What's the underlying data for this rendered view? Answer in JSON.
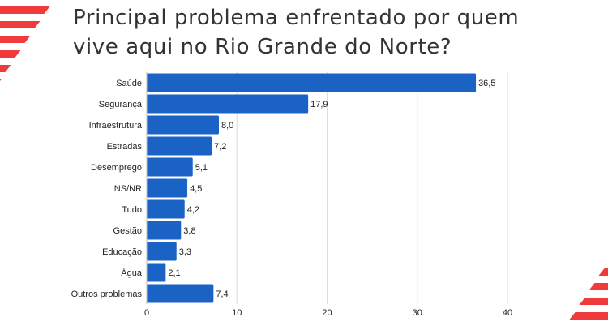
{
  "title_lines": [
    "Principal problema enfrentado por quem",
    "vive aqui no Rio Grande do Norte?"
  ],
  "colors": {
    "bar": "#1a63c4",
    "grid": "#dddddd",
    "accent": "#ef3b3b"
  },
  "chart_data": {
    "type": "bar",
    "orientation": "horizontal",
    "title": "Principal problema enfrentado por quem vive aqui no Rio Grande do Norte?",
    "categories": [
      "Saúde",
      "Segurança",
      "Infraestrutura",
      "Estradas",
      "Desemprego",
      "NS/NR",
      "Tudo",
      "Gestão",
      "Educação",
      "Água",
      "Outros problemas"
    ],
    "values": [
      36.5,
      17.9,
      8.0,
      7.2,
      5.1,
      4.5,
      4.2,
      3.8,
      3.3,
      2.1,
      7.4
    ],
    "value_labels": [
      "36,5",
      "17,9",
      "8,0",
      "7,2",
      "5,1",
      "4,5",
      "4,2",
      "3,8",
      "3,3",
      "2,1",
      "7,4"
    ],
    "xlim": [
      0,
      40
    ],
    "xticks": [
      0,
      10,
      20,
      30,
      40
    ],
    "grid": true,
    "xlabel": "",
    "ylabel": ""
  }
}
